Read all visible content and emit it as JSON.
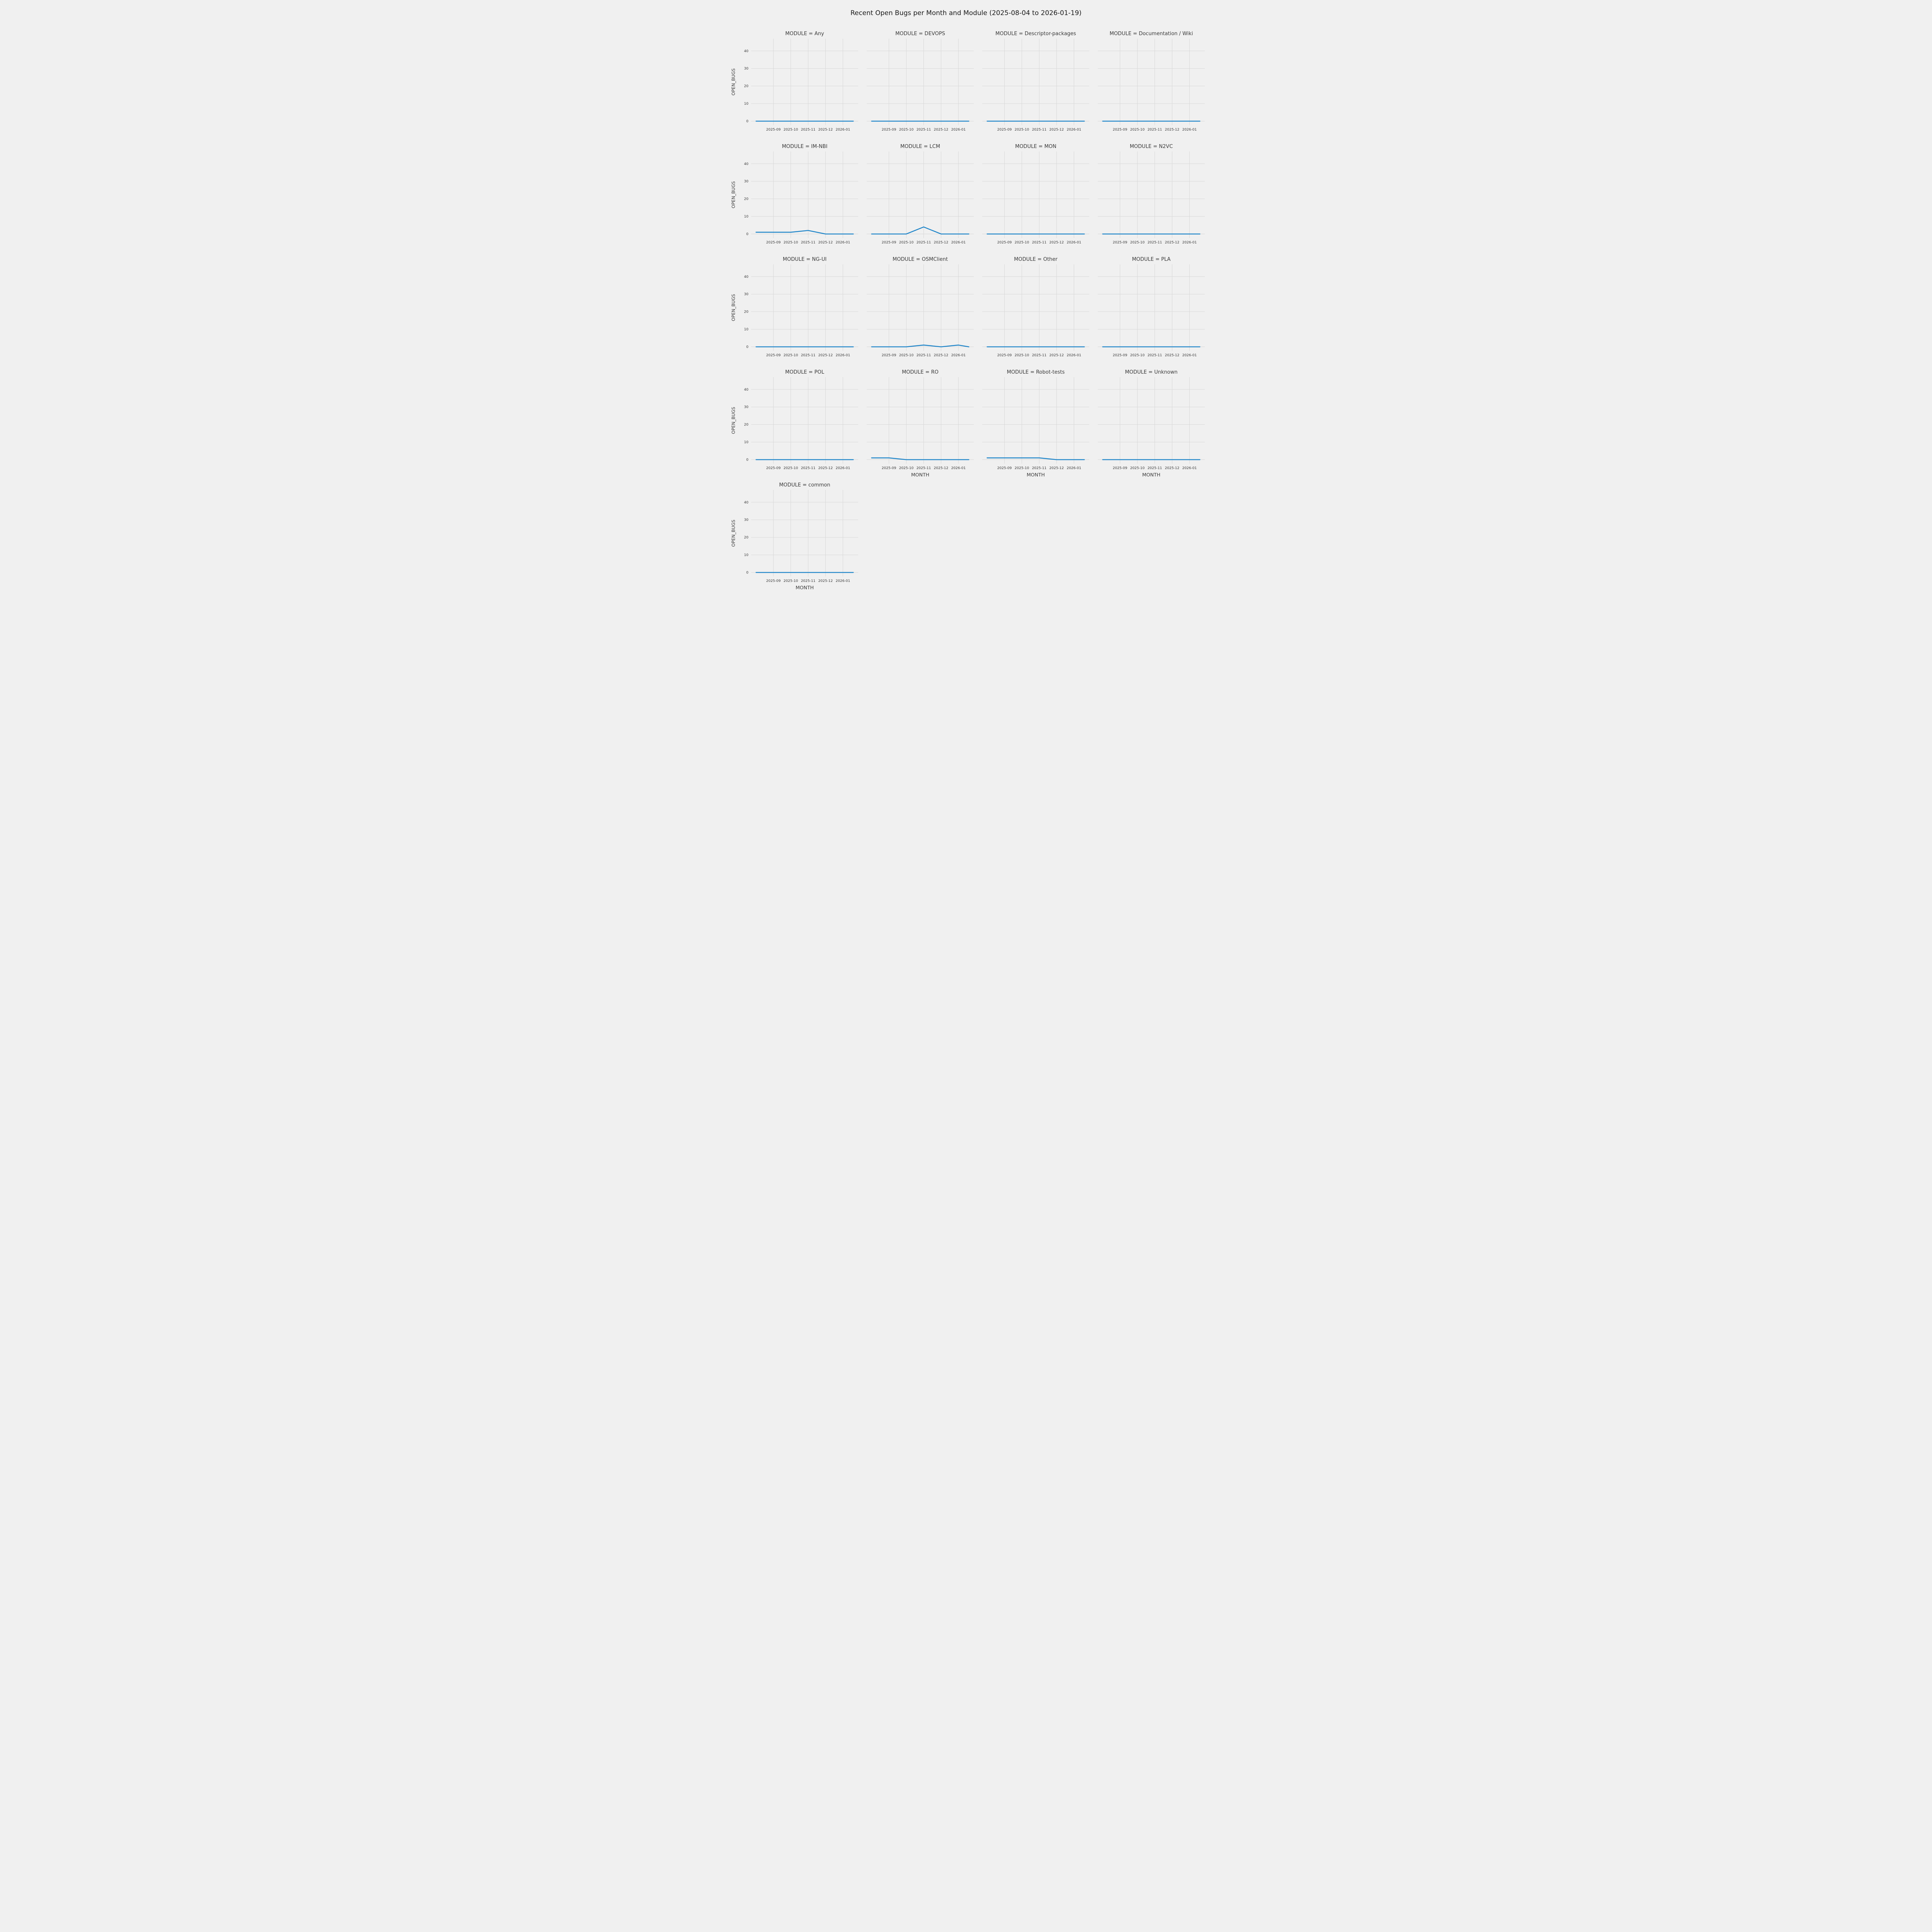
{
  "title": "Recent Open Bugs per Month and Module (2025-08-04 to 2026-01-19)",
  "chart_data": {
    "type": "line",
    "facet_by": "MODULE",
    "x_label": "MONTH",
    "y_label": "OPEN_BUGS",
    "x_months": [
      "2025-08",
      "2025-09",
      "2025-10",
      "2025-11",
      "2025-12",
      "2026-01",
      "2026-01-19"
    ],
    "x_positions": [
      0,
      1,
      2,
      3,
      4,
      5,
      5.6
    ],
    "x_tick_labels": [
      "2025-09",
      "2025-10",
      "2025-11",
      "2025-12",
      "2026-01"
    ],
    "x_tick_positions": [
      1,
      2,
      3,
      4,
      5
    ],
    "y_ticks": [
      0,
      10,
      20,
      30,
      40
    ],
    "xlim": [
      -0.28,
      5.88
    ],
    "ylim": [
      -2.3,
      47
    ],
    "grid": true,
    "legend": "none",
    "line_color": "#1f85c9",
    "facets": [
      {
        "module": "Any",
        "label": "MODULE = Any",
        "values": [
          0,
          0,
          0,
          0,
          0,
          0,
          0
        ]
      },
      {
        "module": "DEVOPS",
        "label": "MODULE = DEVOPS",
        "values": [
          0,
          0,
          0,
          0,
          0,
          0,
          0
        ]
      },
      {
        "module": "Descriptor-packages",
        "label": "MODULE = Descriptor-packages",
        "values": [
          0,
          0,
          0,
          0,
          0,
          0,
          0
        ]
      },
      {
        "module": "Documentation / Wiki",
        "label": "MODULE = Documentation / Wiki",
        "values": [
          0,
          0,
          0,
          0,
          0,
          0,
          0
        ]
      },
      {
        "module": "IM-NBI",
        "label": "MODULE = IM-NBI",
        "values": [
          1,
          1,
          1,
          2,
          0,
          0,
          0
        ]
      },
      {
        "module": "LCM",
        "label": "MODULE = LCM",
        "values": [
          0,
          0,
          0,
          4,
          0,
          0,
          0
        ]
      },
      {
        "module": "MON",
        "label": "MODULE = MON",
        "values": [
          0,
          0,
          0,
          0,
          0,
          0,
          0
        ]
      },
      {
        "module": "N2VC",
        "label": "MODULE = N2VC",
        "values": [
          0,
          0,
          0,
          0,
          0,
          0,
          0
        ]
      },
      {
        "module": "NG-UI",
        "label": "MODULE = NG-UI",
        "values": [
          0,
          0,
          0,
          0,
          0,
          0,
          0
        ]
      },
      {
        "module": "OSMClient",
        "label": "MODULE = OSMClient",
        "values": [
          0,
          0,
          0,
          1,
          0,
          1,
          0
        ]
      },
      {
        "module": "Other",
        "label": "MODULE = Other",
        "values": [
          0,
          0,
          0,
          0,
          0,
          0,
          0
        ]
      },
      {
        "module": "PLA",
        "label": "MODULE = PLA",
        "values": [
          0,
          0,
          0,
          0,
          0,
          0,
          0
        ]
      },
      {
        "module": "POL",
        "label": "MODULE = POL",
        "values": [
          0,
          0,
          0,
          0,
          0,
          0,
          0
        ]
      },
      {
        "module": "RO",
        "label": "MODULE = RO",
        "values": [
          1,
          1,
          0,
          0,
          0,
          0,
          0
        ]
      },
      {
        "module": "Robot-tests",
        "label": "MODULE = Robot-tests",
        "values": [
          1,
          1,
          1,
          1,
          0,
          0,
          0
        ]
      },
      {
        "module": "Unknown",
        "label": "MODULE = Unknown",
        "values": [
          0,
          0,
          0,
          0,
          0,
          0,
          0
        ]
      },
      {
        "module": "common",
        "label": "MODULE = common",
        "values": [
          0,
          0,
          0,
          0,
          0,
          0,
          0
        ]
      }
    ]
  },
  "style": {
    "background": "#f0f0f0",
    "grid_color": "#d8d8d8",
    "tick_color": "#3a3a3a",
    "title_color": "#1a1a1a"
  }
}
